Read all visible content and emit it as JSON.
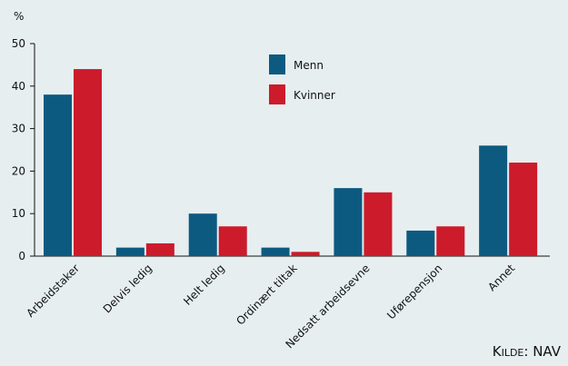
{
  "chart_data": {
    "type": "bar",
    "ylabel": "%",
    "ylim": [
      0,
      50
    ],
    "yticks": [
      0,
      10,
      20,
      30,
      40,
      50
    ],
    "categories": [
      "Arbeidstaker",
      "Delvis ledig",
      "Helt ledig",
      "Ordinært tiltak",
      "Nedsatt arbeidsevne",
      "Uførepensjon",
      "Annet"
    ],
    "series": [
      {
        "name": "Menn",
        "color": "#0d5a80",
        "values": [
          38,
          2,
          10,
          2,
          16,
          6,
          26
        ]
      },
      {
        "name": "Kvinner",
        "color": "#cc1b2b",
        "values": [
          44,
          3,
          7,
          1,
          15,
          7,
          22
        ]
      }
    ],
    "legend_position": "top-center",
    "grid": false
  },
  "source": {
    "prefix": "K",
    "smallcaps": "ilde",
    "suffix": ": NAV"
  }
}
